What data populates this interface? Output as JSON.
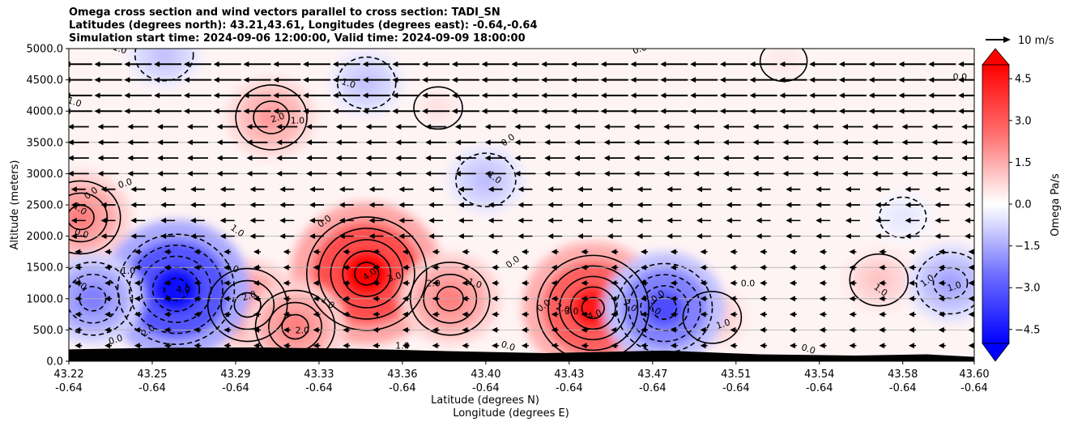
{
  "title_lines": [
    "Omega cross section and wind vectors parallel to cross section: TADI_SN",
    "Latitudes (degrees north): 43.21,43.61, Longitudes (degrees east): -0.64,-0.64",
    "Simulation start time: 2024-09-06 12:00:00, Valid time: 2024-09-09 18:00:00"
  ],
  "chart_data": {
    "type": "heatmap",
    "ylabel": "Altitude (meters)",
    "xlabel_lat": "Latitude (degrees N)",
    "xlabel_lon": "Longitude (degrees E)",
    "ylim": [
      0,
      5000
    ],
    "xlim": [
      43.22,
      43.6
    ],
    "yticks": [
      "0.0",
      "500.0",
      "1000.0",
      "1500.0",
      "2000.0",
      "2500.0",
      "3000.0",
      "3500.0",
      "4000.0",
      "4500.0",
      "5000.0"
    ],
    "xticks_lat": [
      "43.22",
      "43.25",
      "43.29",
      "43.33",
      "43.36",
      "43.40",
      "43.43",
      "43.47",
      "43.51",
      "43.54",
      "43.58",
      "43.60"
    ],
    "xticks_lon": [
      "-0.64",
      "-0.64",
      "-0.64",
      "-0.64",
      "-0.64",
      "-0.64",
      "-0.64",
      "-0.64",
      "-0.64",
      "-0.64",
      "-0.64",
      "-0.64"
    ],
    "grid": "horizontal",
    "colorbar": {
      "label": "Omega Pa/s",
      "range": [
        -5,
        5
      ],
      "ticks": [
        "4.5",
        "3.0",
        "1.5",
        "0.0",
        "−1.5",
        "−3.0",
        "−4.5"
      ],
      "cmap_low": "#0000ff",
      "cmap_high": "#ff0000"
    },
    "wind_reference": "10 m/s",
    "features": [
      {
        "lat": 43.345,
        "alt": 1400,
        "omega": 5.0
      },
      {
        "lat": 43.44,
        "alt": 850,
        "omega": 4.5
      },
      {
        "lat": 43.225,
        "alt": 2300,
        "omega": 2.5
      },
      {
        "lat": 43.305,
        "alt": 3900,
        "omega": 2.0
      },
      {
        "lat": 43.295,
        "alt": 900,
        "omega": 2.5
      },
      {
        "lat": 43.315,
        "alt": 550,
        "omega": 2.5
      },
      {
        "lat": 43.38,
        "alt": 1000,
        "omega": 2.5
      },
      {
        "lat": 43.49,
        "alt": 700,
        "omega": 1.2
      },
      {
        "lat": 43.56,
        "alt": 1300,
        "omega": 1.2
      },
      {
        "lat": 43.375,
        "alt": 4050,
        "omega": 0.6
      },
      {
        "lat": 43.52,
        "alt": 4800,
        "omega": 0.5
      },
      {
        "lat": 43.265,
        "alt": 1150,
        "omega": -4.8
      },
      {
        "lat": 43.47,
        "alt": 850,
        "omega": -3.5
      },
      {
        "lat": 43.23,
        "alt": 1000,
        "omega": -2.5
      },
      {
        "lat": 43.395,
        "alt": 2900,
        "omega": -1.3
      },
      {
        "lat": 43.345,
        "alt": 4450,
        "omega": -1.2
      },
      {
        "lat": 43.59,
        "alt": 1250,
        "omega": -1.8
      },
      {
        "lat": 43.26,
        "alt": 4900,
        "omega": -1.2
      },
      {
        "lat": 43.57,
        "alt": 2300,
        "omega": -0.5
      }
    ],
    "contour_labels": [
      {
        "text": "4.0",
        "lat": 43.347,
        "alt": 1350
      },
      {
        "text": "3.0",
        "lat": 43.357,
        "alt": 1300
      },
      {
        "text": "2.0",
        "lat": 43.373,
        "alt": 1200
      },
      {
        "text": "1.0",
        "lat": 43.39,
        "alt": 1200
      },
      {
        "text": "1.0",
        "lat": 43.328,
        "alt": 900
      },
      {
        "text": "0.0",
        "lat": 43.407,
        "alt": 1550
      },
      {
        "text": "4.0",
        "lat": 43.441,
        "alt": 700
      },
      {
        "text": "3.0",
        "lat": 43.431,
        "alt": 750
      },
      {
        "text": "2.0",
        "lat": 43.427,
        "alt": 800
      },
      {
        "text": "2.0",
        "lat": 43.455,
        "alt": 850
      },
      {
        "text": "0.0",
        "lat": 43.42,
        "alt": 850
      },
      {
        "text": "2.0",
        "lat": 43.296,
        "alt": 1000
      },
      {
        "text": "2.0",
        "lat": 43.318,
        "alt": 450
      },
      {
        "text": "1.0",
        "lat": 43.288,
        "alt": 1450
      },
      {
        "text": "1.0",
        "lat": 43.29,
        "alt": 2050
      },
      {
        "text": "0.0",
        "lat": 43.328,
        "alt": 2200
      },
      {
        "text": "2.0",
        "lat": 43.308,
        "alt": 3850
      },
      {
        "text": "1.0",
        "lat": 43.316,
        "alt": 3800
      },
      {
        "text": "0.0",
        "lat": 43.225,
        "alt": 2000
      },
      {
        "text": "1.0",
        "lat": 43.224,
        "alt": 2400
      },
      {
        "text": "0.0",
        "lat": 43.23,
        "alt": 2650
      },
      {
        "text": "0.0",
        "lat": 43.244,
        "alt": 2800
      },
      {
        "text": "1.0",
        "lat": 43.245,
        "alt": 1400
      },
      {
        "text": "1.0",
        "lat": 43.222,
        "alt": 4100
      },
      {
        "text": "2.0",
        "lat": 43.224,
        "alt": 1200
      },
      {
        "text": "2.0",
        "lat": 43.254,
        "alt": 450
      },
      {
        "text": "0.0",
        "lat": 43.24,
        "alt": 300
      },
      {
        "text": "4.0",
        "lat": 43.268,
        "alt": 1100
      },
      {
        "text": "1.0",
        "lat": 43.337,
        "alt": 4400
      },
      {
        "text": "1.0",
        "lat": 43.398,
        "alt": 2900
      },
      {
        "text": "0.0",
        "lat": 43.405,
        "alt": 3500
      },
      {
        "text": "0.0",
        "lat": 43.46,
        "alt": 4950
      },
      {
        "text": "1.0",
        "lat": 43.36,
        "alt": 200
      },
      {
        "text": "0.0",
        "lat": 43.404,
        "alt": 200
      },
      {
        "text": "1.0",
        "lat": 43.465,
        "alt": 800
      },
      {
        "text": "0.0",
        "lat": 43.468,
        "alt": 1000
      },
      {
        "text": "1.0",
        "lat": 43.495,
        "alt": 550
      },
      {
        "text": "0.0",
        "lat": 43.505,
        "alt": 1200
      },
      {
        "text": "0.0",
        "lat": 43.53,
        "alt": 150
      },
      {
        "text": "1.0",
        "lat": 43.56,
        "alt": 1100
      },
      {
        "text": "1.0",
        "lat": 43.581,
        "alt": 1250
      },
      {
        "text": "1.0",
        "lat": 43.592,
        "alt": 1150
      },
      {
        "text": "0.0",
        "lat": 43.594,
        "alt": 4500
      },
      {
        "text": "1.0",
        "lat": 43.241,
        "alt": 4950
      }
    ]
  }
}
